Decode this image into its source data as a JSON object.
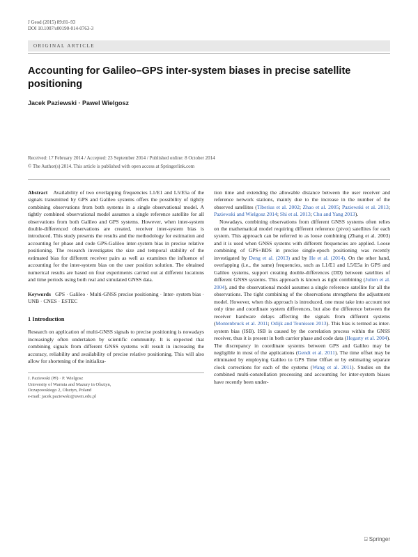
{
  "header": {
    "journal": "J Geod (2015) 89:81–93",
    "doi": "DOI 10.1007/s00190-014-0763-3"
  },
  "label": "ORIGINAL ARTICLE",
  "title": "Accounting for Galileo–GPS inter-system biases in precise satellite positioning",
  "authors": "Jacek Paziewski · Pawel Wielgosz",
  "received": "Received: 17 February 2014 / Accepted: 23 September 2014 / Published online: 8 October 2014",
  "copyright": "© The Author(s) 2014. This article is published with open access at Springerlink.com",
  "abstract_label": "Abstract",
  "abstract": "Availability of two overlapping frequencies L1/E1 and L5/E5a of the signals transmitted by GPS and Galileo systems offers the possibility of tightly combining observations from both systems in a single observational model. A tightly combined observational model assumes a single reference satellite for all observations from both Galileo and GPS systems. However, when inter-system double-differenced observations are created, receiver inter-system bias is introduced. This study presents the results and the methodology for estimation and accounting for phase and code GPS-Galileo inter-system bias in precise relative positioning. The research investigates the size and temporal stability of the estimated bias for different receiver pairs as well as examines the influence of accounting for the inter-system bias on the user position solution. The obtained numerical results are based on four experiments carried out at different locations and time periods using both real and simulated GNSS data.",
  "keywords_label": "Keywords",
  "keywords": "GPS · Galileo · Multi-GNSS precise positioning · Inter- system bias · UNB · CNES · ESTEC",
  "intro_head": "1 Introduction",
  "intro_p1": "Research on application of multi-GNSS signals to precise positioning is nowadays increasingly often undertaken by scientific community. It is expected that combining signals from different GNSS systems will result in increasing the accuracy, reliability and availability of precise relative positioning. This will also allow for shortening of the initializa-",
  "right_p1a": "tion time and extending the allowable distance between the user receiver and reference network stations, mainly due to the increase in the number of the observed satellites (",
  "cite1": "Tiberius et al. 2002",
  "cite2": "Zhao et al. 2005",
  "cite3": "Paziewski et al. 2013",
  "cite4": "Paziewski and Wielgosz 2014",
  "cite5": "Shi et al. 2013",
  "cite6": "Chu and Yang 2013",
  "right_p2a": "Nowadays, combining observations from different GNSS systems often relies on the mathematical model requiring different reference (pivot) satellites for each system. This approach can be referred to as loose combining (Zhang et al. 2003) and it is used when GNSS systems with different frequencies are applied. Loose combining of GPS+BDS in precise single-epoch positioning was recently investigated by ",
  "cite7": "Deng et al. (2013)",
  "right_p2b": " and by ",
  "cite8": "He et al. (2014)",
  "right_p2c": ". On the other hand, overlapping (i.e., the same) frequencies, such as L1/E1 and L5/E5a in GPS and Galileo systems, support creating double-differences (DD) between satellites of different GNSS systems. This approach is known as tight combining (",
  "cite9": "Julien et al. 2004",
  "right_p2d": "), and the observational model assumes a single reference satellite for all the observations. The tight combining of the observations strengthens the adjustment model. However, when this approach is introduced, one must take into account not only time and coordinate system differences, but also the difference between the receiver hardware delays affecting the signals from different systems (",
  "cite10": "Montenbruck et al. 2011",
  "cite11": "Odijk and Teunissen 2013",
  "right_p2e": "). This bias is termed as inter- system bias (ISB). ISB is caused by the correlation process within the GNSS receiver, thus it is present in both carrier phase and code data (",
  "cite12": "Hegarty et al. 2004",
  "right_p2f": "). The discrepancy in coordinate systems between GPS and Galileo may be negligible in most of the applications (",
  "cite13": "Gendt et al. 2011",
  "right_p2g": "). The time offset may be eliminated by employing Galileo to GPS Time Offset or by estimating separate clock corrections for each of the systems (",
  "cite14": "Wang et al. 2011",
  "right_p2h": "). Studies on the combined multi-constellation processing and accounting for inter-system biases have recently been under-",
  "affil1": "J. Paziewski (✉) · P. Wielgosz",
  "affil2": "University of Warmia and Mazury in Olsztyn,",
  "affil3": "Oczapowskiego 2, Olsztyn, Poland",
  "affil4": "e-mail: jacek.paziewski@uwm.edu.pl",
  "publisher": "Springer"
}
